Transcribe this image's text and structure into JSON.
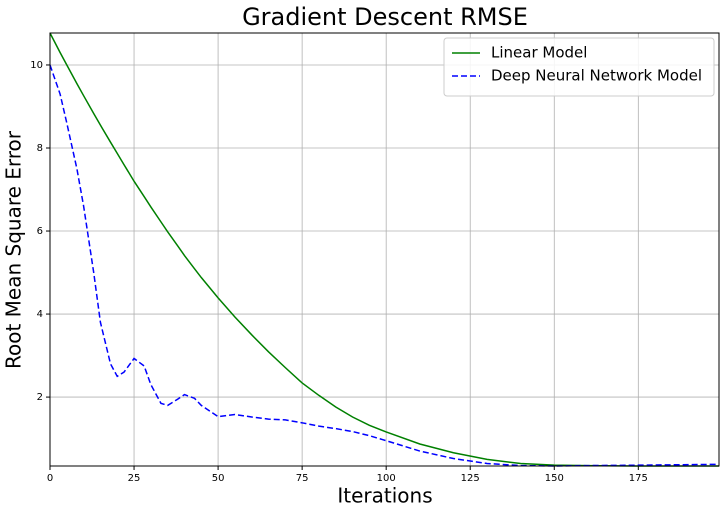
{
  "chart_data": {
    "type": "line",
    "title": "Gradient Descent RMSE",
    "x_label": "Iterations",
    "y_label": "Root Mean Square Error",
    "x": [
      0,
      3,
      5,
      8,
      10,
      13,
      15,
      18,
      20,
      22,
      25,
      28,
      30,
      33,
      35,
      38,
      40,
      43,
      45,
      50,
      55,
      60,
      65,
      70,
      75,
      80,
      85,
      90,
      95,
      100,
      110,
      120,
      130,
      140,
      150,
      160,
      175,
      199
    ],
    "series": [
      {
        "name": "Linear Model",
        "color": "#008000",
        "dash": "solid",
        "values": [
          10.77,
          10.3,
          10.0,
          9.55,
          9.26,
          8.83,
          8.55,
          8.14,
          7.87,
          7.6,
          7.2,
          6.83,
          6.58,
          6.22,
          5.98,
          5.64,
          5.41,
          5.09,
          4.88,
          4.39,
          3.93,
          3.5,
          3.09,
          2.71,
          2.34,
          2.04,
          1.76,
          1.52,
          1.32,
          1.16,
          0.87,
          0.66,
          0.5,
          0.4,
          0.36,
          0.35,
          0.34,
          0.34
        ]
      },
      {
        "name": "Deep Neural Network Model",
        "color": "#0000ff",
        "dash": "dashed",
        "values": [
          10.0,
          9.3,
          8.6,
          7.5,
          6.6,
          5.0,
          3.8,
          2.8,
          2.5,
          2.6,
          2.93,
          2.75,
          2.3,
          1.85,
          1.8,
          1.95,
          2.06,
          1.97,
          1.8,
          1.53,
          1.58,
          1.52,
          1.47,
          1.45,
          1.38,
          1.3,
          1.24,
          1.17,
          1.07,
          0.95,
          0.7,
          0.52,
          0.4,
          0.35,
          0.34,
          0.35,
          0.36,
          0.38
        ]
      }
    ],
    "xlim": [
      0,
      199
    ],
    "xticks": [
      0,
      25,
      50,
      75,
      100,
      125,
      150,
      175
    ],
    "ylim": [
      0.34,
      10.77
    ],
    "yticks": [
      2,
      4,
      6,
      8,
      10
    ],
    "grid": true,
    "legend": "upper-right"
  }
}
